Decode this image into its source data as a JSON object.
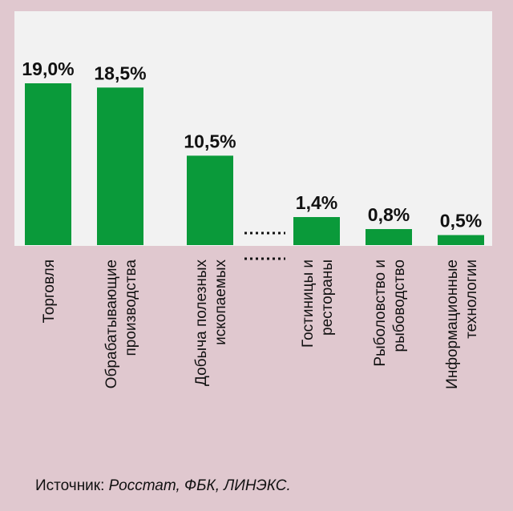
{
  "chart_data": {
    "type": "bar",
    "categories": [
      [
        "Торговля"
      ],
      [
        "Обрабатывающие",
        "производства"
      ],
      [
        "Добыча полезных",
        "ископаемых"
      ],
      [
        "Гостиницы и",
        "рестораны"
      ],
      [
        "Рыболовство и",
        "рыбоводство"
      ],
      [
        "Информационные",
        "технологии"
      ]
    ],
    "values": [
      19.0,
      18.5,
      10.5,
      1.4,
      0.8,
      0.5
    ],
    "value_labels": [
      "19,0%",
      "18,5%",
      "10,5%",
      "1,4%",
      "0,8%",
      "0,5%"
    ],
    "axis_break_after_index": 2,
    "colors": {
      "bar": "#0a9a3a",
      "plot_bg": "#f2f2f2",
      "page_bg": "#e0c8cf"
    }
  },
  "source": {
    "label": "Источник:",
    "value": "Росстат, ФБК, ЛИНЭКС."
  }
}
